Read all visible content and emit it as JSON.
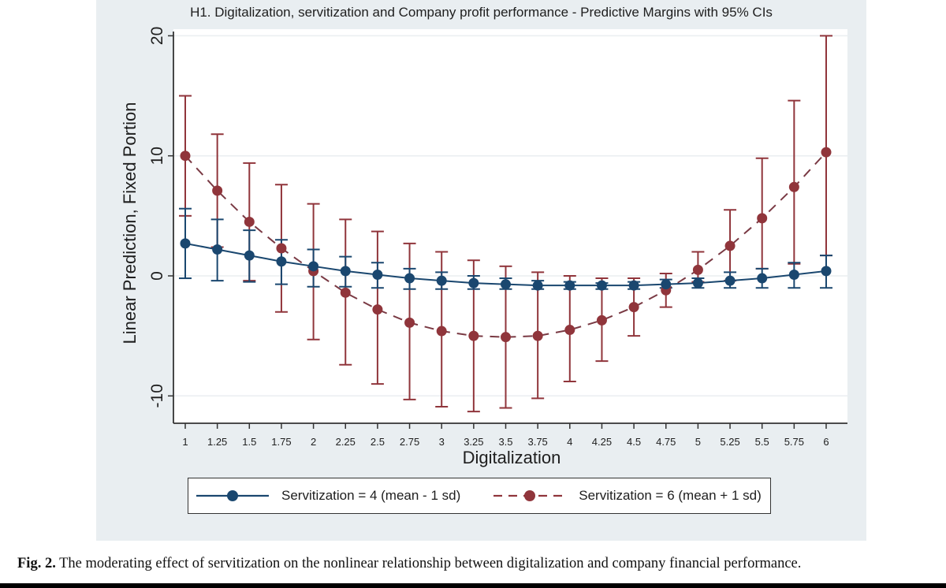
{
  "chart_data": {
    "type": "line",
    "title": "H1. Digitalization, servitization and Company profit performance - Predictive Margins with 95% CIs",
    "xlabel": "Digitalization",
    "ylabel": "Linear Prediction, Fixed Portion",
    "x": [
      1,
      1.25,
      1.5,
      1.75,
      2,
      2.25,
      2.5,
      2.75,
      3,
      3.25,
      3.5,
      3.75,
      4,
      4.25,
      4.5,
      4.75,
      5,
      5.25,
      5.5,
      5.75,
      6
    ],
    "x_tick_labels": [
      "1",
      "1.25",
      "1.5",
      "1.75",
      "2",
      "2.25",
      "2.5",
      "2.75",
      "3",
      "3.25",
      "3.5",
      "3.75",
      "4",
      "4.25",
      "4.5",
      "4.75",
      "5",
      "5.25",
      "5.5",
      "5.75",
      "6"
    ],
    "xlim": [
      0.9,
      6.1
    ],
    "y_ticks": [
      -10,
      0,
      10,
      20
    ],
    "y_tick_labels": [
      "-10",
      "0",
      "10",
      "20"
    ],
    "ylim": [
      -12.2,
      20.3
    ],
    "grid": "horizontal",
    "legend_position": "bottom",
    "series": [
      {
        "name": "Servitization = 4 (mean - 1 sd)",
        "color": "#1a476f",
        "line_style": "solid",
        "values": [
          2.7,
          2.2,
          1.7,
          1.2,
          0.8,
          0.4,
          0.1,
          -0.2,
          -0.4,
          -0.6,
          -0.7,
          -0.8,
          -0.8,
          -0.8,
          -0.8,
          -0.7,
          -0.6,
          -0.4,
          -0.2,
          0.1,
          0.4
        ],
        "ci_low": [
          -0.2,
          -0.4,
          -0.5,
          -0.7,
          -0.9,
          -0.9,
          -1.0,
          -1.1,
          -1.1,
          -1.1,
          -1.1,
          -1.1,
          -1.1,
          -1.1,
          -1.1,
          -1.0,
          -1.0,
          -1.0,
          -1.0,
          -1.0,
          -1.0
        ],
        "ci_high": [
          5.6,
          4.7,
          3.8,
          3.0,
          2.2,
          1.6,
          1.1,
          0.6,
          0.3,
          0.0,
          -0.2,
          -0.4,
          -0.5,
          -0.6,
          -0.5,
          -0.3,
          -0.2,
          0.3,
          0.6,
          1.1,
          1.7
        ]
      },
      {
        "name": "Servitization = 6 (mean + 1 sd)",
        "color": "#90353b",
        "line_style": "dashed",
        "values": [
          10.0,
          7.1,
          4.5,
          2.3,
          0.4,
          -1.4,
          -2.8,
          -3.9,
          -4.6,
          -5.0,
          -5.1,
          -5.0,
          -4.5,
          -3.7,
          -2.6,
          -1.2,
          0.5,
          2.5,
          4.8,
          7.4,
          10.3
        ],
        "ci_low": [
          5.0,
          2.4,
          -0.4,
          -3.0,
          -5.3,
          -7.4,
          -9.0,
          -10.3,
          -10.9,
          -11.3,
          -11.0,
          -10.2,
          -8.8,
          -7.1,
          -5.0,
          -2.6,
          -0.5,
          -0.4,
          0.6,
          1.0,
          1.7
        ],
        "ci_high": [
          15.0,
          11.8,
          9.4,
          7.6,
          6.0,
          4.7,
          3.7,
          2.7,
          2.0,
          1.3,
          0.8,
          0.3,
          0.0,
          -0.2,
          -0.2,
          0.2,
          2.0,
          5.5,
          9.8,
          14.6,
          20.0
        ]
      }
    ]
  },
  "caption": {
    "label": "Fig. 2.",
    "text": " The moderating effect of servitization on the nonlinear relationship between digitalization and company financial performance."
  }
}
